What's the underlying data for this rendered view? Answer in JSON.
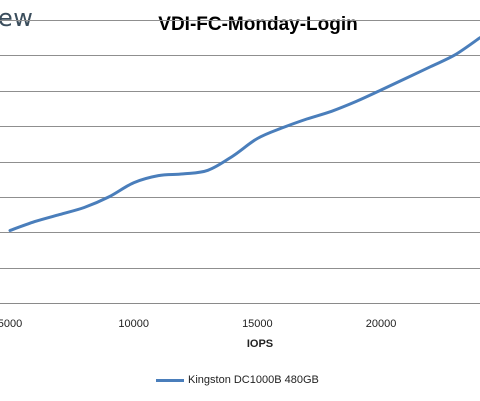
{
  "logo": {
    "fragment_text": "ew"
  },
  "chart_data": {
    "type": "line",
    "title": "VDI-FC-Monday-Login",
    "xlabel": "IOPS",
    "ylabel": "",
    "x_ticks": [
      5000,
      10000,
      15000,
      20000
    ],
    "x_tick_labels": [
      "5000",
      "10000",
      "15000",
      "20000"
    ],
    "xlim": [
      5000,
      24000
    ],
    "ylim": [
      0,
      8
    ],
    "y_gridlines": [
      0,
      1,
      2,
      3,
      4,
      5,
      6,
      7,
      8
    ],
    "grid": true,
    "legend": "bottom",
    "series": [
      {
        "name": "Kingston DC1000B 480GB",
        "color": "#4a7ebb",
        "x": [
          5000,
          6000,
          7000,
          8000,
          9000,
          10000,
          11000,
          12000,
          13000,
          14000,
          15000,
          16000,
          17000,
          18000,
          19000,
          20000,
          21000,
          22000,
          23000,
          24000
        ],
        "y": [
          2.05,
          2.3,
          2.5,
          2.7,
          3.0,
          3.4,
          3.6,
          3.65,
          3.75,
          4.15,
          4.65,
          4.95,
          5.2,
          5.42,
          5.7,
          6.02,
          6.35,
          6.68,
          7.02,
          7.5
        ]
      }
    ]
  }
}
